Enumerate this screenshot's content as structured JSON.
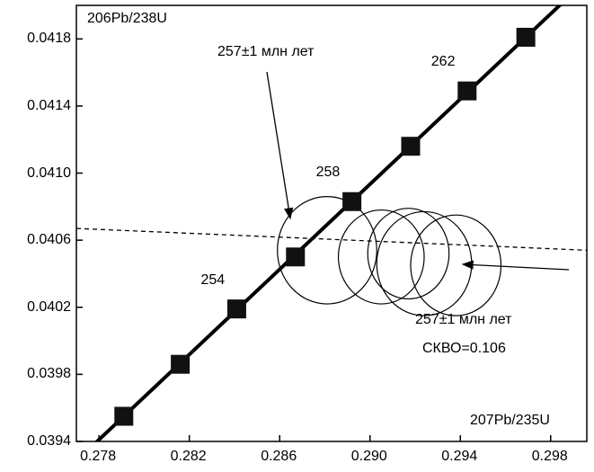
{
  "chart_data": {
    "type": "scatter",
    "title": "",
    "ylabel": "206Pb/238U",
    "xlabel": "207Pb/235U",
    "xlim": [
      0.277,
      0.2996
    ],
    "ylim": [
      0.0394,
      0.042
    ],
    "x_ticks": [
      "0.278",
      "0.282",
      "0.286",
      "0.290",
      "0.294",
      "0.298"
    ],
    "y_ticks": [
      "0.0394",
      "0.0398",
      "0.0402",
      "0.0406",
      "0.0410",
      "0.0414",
      "0.0418"
    ],
    "grid": false,
    "concordia": {
      "points": [
        {
          "x": 0.2791,
          "y": 0.03955,
          "age": ""
        },
        {
          "x": 0.2816,
          "y": 0.03986,
          "age": ""
        },
        {
          "x": 0.2841,
          "y": 0.04019,
          "age": "254"
        },
        {
          "x": 0.2867,
          "y": 0.0405,
          "age": ""
        },
        {
          "x": 0.2892,
          "y": 0.04083,
          "age": "258"
        },
        {
          "x": 0.2918,
          "y": 0.04116,
          "age": ""
        },
        {
          "x": 0.2943,
          "y": 0.04149,
          "age": "262"
        },
        {
          "x": 0.2969,
          "y": 0.04181,
          "age": ""
        }
      ]
    },
    "discordia_line": {
      "x": [
        0.277,
        0.2996
      ],
      "y": [
        0.04067,
        0.04054
      ]
    },
    "ellipses": [
      {
        "cx": 0.2881,
        "cy": 0.04054,
        "rx": 0.0022,
        "ry": 0.00032
      },
      {
        "cx": 0.2905,
        "cy": 0.0405,
        "rx": 0.0019,
        "ry": 0.00028
      },
      {
        "cx": 0.2917,
        "cy": 0.04052,
        "rx": 0.0018,
        "ry": 0.00027
      },
      {
        "cx": 0.2924,
        "cy": 0.04046,
        "rx": 0.0021,
        "ry": 0.00031
      },
      {
        "cx": 0.2938,
        "cy": 0.04045,
        "rx": 0.002,
        "ry": 0.0003
      }
    ],
    "annotations": [
      {
        "text": "257±1 млн лет"
      },
      {
        "text": "257±1 млн лет"
      },
      {
        "text": "СКВО=0.106"
      }
    ]
  }
}
